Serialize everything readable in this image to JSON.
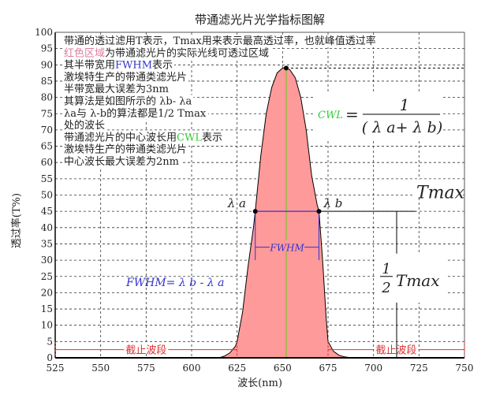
{
  "chart_data": {
    "type": "area",
    "title": "带通滤光片光学指标图解",
    "xlabel": "波长(nm)",
    "ylabel": "透过率(T%)",
    "xlim": [
      525,
      750
    ],
    "ylim": [
      0,
      100
    ],
    "xticks": [
      525,
      550,
      575,
      600,
      625,
      650,
      675,
      700,
      725,
      750
    ],
    "yticks": [
      0,
      5,
      10,
      15,
      20,
      25,
      30,
      35,
      40,
      45,
      50,
      55,
      60,
      65,
      70,
      75,
      80,
      85,
      90,
      95,
      100
    ],
    "grid": true,
    "fill_color": "#ff9a9a",
    "curve": {
      "x": [
        615,
        618,
        621,
        624,
        625,
        628,
        631,
        634,
        635,
        638,
        641,
        644,
        647,
        650,
        652,
        654,
        657,
        660,
        663,
        666,
        669,
        670,
        672,
        674,
        675,
        678,
        681,
        684,
        688
      ],
      "y": [
        0,
        0.5,
        1.5,
        3.5,
        5,
        14,
        28,
        40,
        45,
        62,
        75,
        83,
        87.5,
        89,
        89,
        88.5,
        86,
        80,
        70,
        56,
        47,
        45,
        30,
        12,
        5,
        2,
        0.8,
        0.3,
        0
      ]
    },
    "peak": {
      "x": 652,
      "y": 89
    },
    "lambda_a": {
      "x": 635,
      "y": 45
    },
    "lambda_b": {
      "x": 670,
      "y": 45
    },
    "cutoff_bands": [
      [
        525,
        625
      ],
      [
        675,
        750
      ]
    ],
    "cutoff_level": 2.5,
    "colors": {
      "curve": "#000000",
      "cwl_line": "#8fbf3f",
      "fwhm": "#3333cc",
      "cutoff": "#e03030",
      "cwl_text": "#33cc33",
      "pink_text": "#e07aa0"
    }
  },
  "notes": [
    {
      "parts": [
        {
          "t": "带通的透过滤用T表示，Tmax用来表示最高透过率，也就峰值透过率",
          "c": ""
        }
      ]
    },
    {
      "parts": [
        {
          "t": "红色区域",
          "c": "pink"
        },
        {
          "t": "为带通滤光片的实际光线可透过区域",
          "c": ""
        }
      ]
    },
    {
      "parts": [
        {
          "t": "其半带宽用",
          "c": ""
        },
        {
          "t": "FWHM",
          "c": "blue"
        },
        {
          "t": "表示",
          "c": ""
        }
      ]
    },
    {
      "parts": [
        {
          "t": "激埃特生产的带通类滤光片",
          "c": ""
        }
      ]
    },
    {
      "parts": [
        {
          "t": "半带宽最大误差为3nm",
          "c": ""
        }
      ]
    },
    {
      "parts": [
        {
          "t": "其算法是如图所示的 λb- λa",
          "c": ""
        }
      ]
    },
    {
      "parts": [
        {
          "t": " λa与 λ-b的算法都是1/2 Tmax",
          "c": ""
        }
      ]
    },
    {
      "parts": [
        {
          "t": " 处的波长",
          "c": ""
        }
      ]
    },
    {
      "parts": [
        {
          "t": "带通滤光片的中心波长用",
          "c": ""
        },
        {
          "t": "CWL",
          "c": "green"
        },
        {
          "t": "表示",
          "c": ""
        }
      ]
    },
    {
      "parts": [
        {
          "t": "激埃特生产的带通类滤光片",
          "c": ""
        }
      ]
    },
    {
      "parts": [
        {
          "t": "中心波长最大误差为2nm",
          "c": ""
        }
      ]
    }
  ],
  "labels": {
    "lambda_a": "λ a",
    "lambda_b": "λ b",
    "fwhm": "FWHM",
    "fwhm_formula": "FWHM= λ b - λ a",
    "cwl": "CWL",
    "cwl_eq": "=",
    "cwl_num": "1",
    "cwl_den": "( λ a+ λ b)",
    "tmax": "Tmax",
    "half_num": "1",
    "half_den": "2",
    "half_tmax": "Tmax",
    "cutoff": "截止波段"
  }
}
